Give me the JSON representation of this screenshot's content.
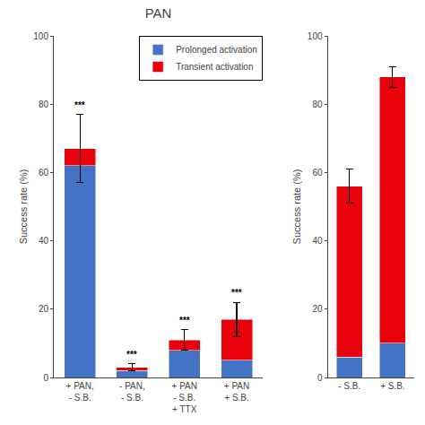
{
  "chart_data": [
    {
      "type": "bar",
      "title": "PAN",
      "ylabel": "Success rate (%)",
      "categories": [
        "+ PAN,\n- S.B.",
        "- PAN,\n- S.B.",
        "+ PAN\n- S.B.\n+ TTX",
        "+ PAN\n+ S.B."
      ],
      "stacked": true,
      "series": [
        {
          "name": "Prolonged activation",
          "color": "#4472C4",
          "values": [
            62,
            2,
            8,
            5
          ]
        },
        {
          "name": "Transient activation",
          "color": "#E8000B",
          "values": [
            5,
            1,
            3,
            12
          ],
          "errors": [
            10,
            1,
            3,
            5
          ]
        }
      ],
      "annotations": [
        "***",
        "***",
        "***",
        "***"
      ],
      "ylim": [
        0,
        100
      ],
      "yticks": [
        0,
        20,
        40,
        60,
        80,
        100
      ],
      "grid": false,
      "legend": "upper right"
    },
    {
      "type": "bar",
      "ylabel": "Success rate (%)",
      "categories": [
        "- S.B.",
        "+ S.B."
      ],
      "stacked": true,
      "series": [
        {
          "color": "#4472C4",
          "values": [
            6,
            10
          ]
        },
        {
          "color": "#E8000B",
          "values": [
            50,
            78
          ],
          "errors": [
            5,
            3
          ]
        }
      ],
      "ylim": [
        0,
        100
      ],
      "yticks": [
        0,
        20,
        40,
        60,
        80,
        100
      ],
      "grid": false
    }
  ]
}
